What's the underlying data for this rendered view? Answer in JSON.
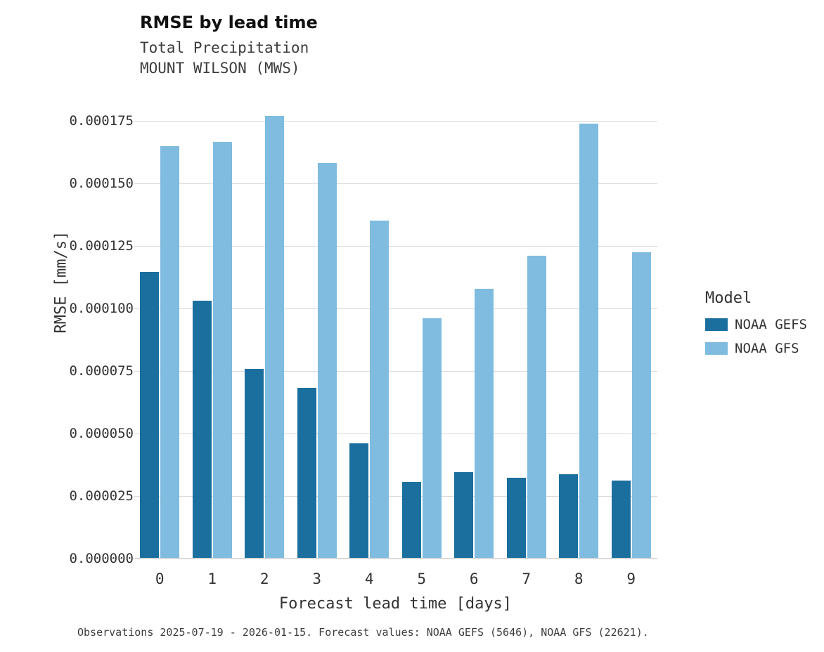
{
  "title": "RMSE by lead time",
  "subtitle_line1": "Total Precipitation",
  "subtitle_line2": "MOUNT WILSON (MWS)",
  "caption": "Observations 2025-07-19 - 2026-01-15. Forecast values: NOAA GEFS (5646), NOAA GFS (22621).",
  "legend": {
    "title": "Model",
    "entries": [
      {
        "label": "NOAA GEFS",
        "color": "#1b6f9e"
      },
      {
        "label": "NOAA GFS",
        "color": "#7fbce0"
      }
    ]
  },
  "colors": {
    "gefs_bar": "#1b6f9e",
    "gfs_bar": "#7fbce0",
    "gridline": "#d9d9d9",
    "text": "#333333"
  },
  "chart_data": {
    "type": "bar",
    "title": "RMSE by lead time",
    "subtitle": "Total Precipitation — MOUNT WILSON (MWS)",
    "xlabel": "Forecast lead time [days]",
    "ylabel": "RMSE [mm/s]",
    "categories": [
      "0",
      "1",
      "2",
      "3",
      "4",
      "5",
      "6",
      "7",
      "8",
      "9"
    ],
    "series": [
      {
        "name": "NOAA GEFS",
        "color": "#1b6f9e",
        "values": [
          0.0001145,
          0.000103,
          7.58e-05,
          6.82e-05,
          4.6e-05,
          3.05e-05,
          3.42e-05,
          3.22e-05,
          3.35e-05,
          3.1e-05
        ]
      },
      {
        "name": "NOAA GFS",
        "color": "#7fbce0",
        "values": [
          0.0001648,
          0.0001665,
          0.000177,
          0.0001582,
          0.000135,
          9.6e-05,
          0.0001078,
          0.000121,
          0.0001738,
          0.0001225
        ]
      }
    ],
    "ylim": [
      0,
      0.0001868
    ],
    "yticks": [
      0.0,
      2.5e-05,
      5e-05,
      7.5e-05,
      0.0001,
      0.000125,
      0.00015,
      0.000175
    ],
    "ytick_labels": [
      "0.000000",
      "0.000025",
      "0.000050",
      "0.000075",
      "0.000100",
      "0.000125",
      "0.000150",
      "0.000175"
    ],
    "grid": true,
    "legend_position": "right"
  }
}
